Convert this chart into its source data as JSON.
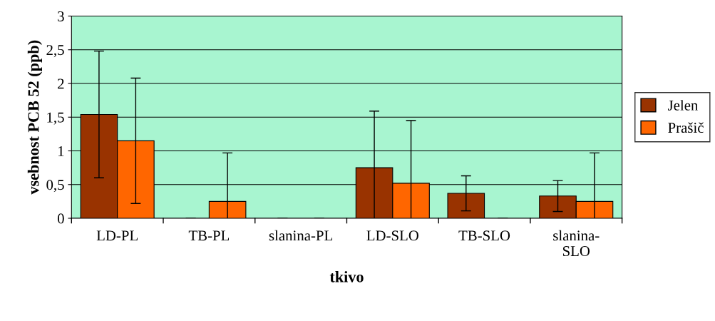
{
  "chart_data": {
    "type": "bar",
    "xlabel": "tkivo",
    "ylabel": "vsebnost PCB 52 (ppb)",
    "categories": [
      "LD-PL",
      "TB-PL",
      "slanina-PL",
      "LD-SLO",
      "TB-SLO",
      "slanina-\nSLO"
    ],
    "series": [
      {
        "name": "Jelen",
        "color": "#993300",
        "values": [
          1.54,
          0,
          0,
          0.75,
          0.37,
          0.33
        ],
        "errors": [
          0.94,
          0,
          0,
          0.84,
          0.26,
          0.23
        ]
      },
      {
        "name": "Prašič",
        "color": "#ff6600",
        "values": [
          1.15,
          0.25,
          0,
          0.52,
          0,
          0.25
        ],
        "errors": [
          0.93,
          0.72,
          0,
          0.93,
          0,
          0.72
        ]
      }
    ],
    "ylim": [
      0,
      3
    ],
    "yticks": [
      0,
      {
        "value": 0.5,
        "label": "0,5"
      },
      1,
      {
        "value": 1.5,
        "label": "1,5"
      },
      2,
      {
        "value": 2.5,
        "label": "2,5"
      },
      3
    ],
    "grid": "y",
    "legend": "right"
  }
}
